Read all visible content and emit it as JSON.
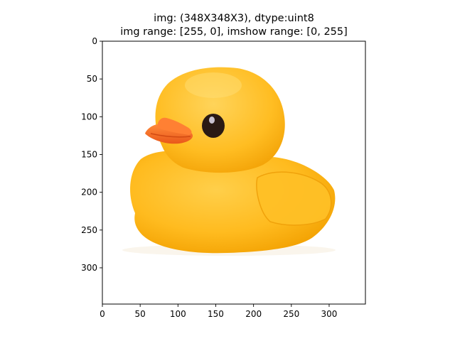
{
  "chart_data": {
    "type": "image",
    "title_lines": [
      "img: (348X348X3), dtype:uint8",
      "img range: [255, 0], imshow range: [0, 255]"
    ],
    "xlabel": "",
    "ylabel": "",
    "image": {
      "width": 348,
      "height": 348,
      "channels": 3,
      "subject": "yellow rubber duck",
      "colors": {
        "background": "#ffffff",
        "body": "#ffbb1f",
        "body_shadow": "#f2a000",
        "highlight": "#ffd65a",
        "beak": "#ff7a28",
        "beak_dark": "#e5561a",
        "eye": "#2a1a14",
        "eye_glint": "#c9c3d0"
      }
    },
    "xlim": [
      0,
      348
    ],
    "ylim": [
      348,
      0
    ],
    "x_ticks": [
      0,
      50,
      100,
      150,
      200,
      250,
      300
    ],
    "y_ticks": [
      0,
      50,
      100,
      150,
      200,
      250,
      300
    ]
  }
}
